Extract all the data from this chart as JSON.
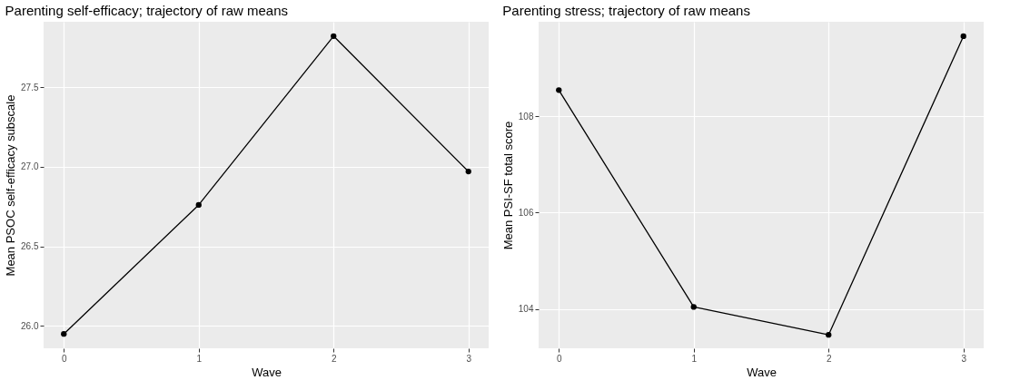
{
  "chart_data": [
    {
      "type": "line",
      "title": "Parenting self-efficacy; trajectory of raw means",
      "xlabel": "Wave",
      "ylabel": "Mean PSOC self-efficacy subscale",
      "x": [
        0,
        1,
        2,
        3
      ],
      "series": [
        {
          "color": "#000000",
          "values": [
            25.95,
            26.76,
            27.82,
            26.97
          ]
        }
      ],
      "xlim": [
        -0.15,
        3.15
      ],
      "xticks": [
        0,
        1,
        2,
        3
      ],
      "ylim": [
        25.86,
        27.91
      ],
      "yticks": [
        {
          "value": 26.0,
          "label": "26.0"
        },
        26.5,
        {
          "value": 27.0,
          "label": "27.0"
        },
        27.5
      ],
      "grid": true,
      "marker": "circle",
      "line_style": "solid"
    },
    {
      "type": "line",
      "title": "Parenting stress; trajectory of raw means",
      "xlabel": "Wave",
      "ylabel": "Mean PSI-SF total score",
      "x": [
        0,
        1,
        2,
        3
      ],
      "series": [
        {
          "color": "#000000",
          "values": [
            108.55,
            104.04,
            103.46,
            109.67
          ]
        }
      ],
      "xlim": [
        -0.15,
        3.15
      ],
      "xticks": [
        0,
        1,
        2,
        3
      ],
      "ylim": [
        103.18,
        109.97
      ],
      "yticks": [
        104,
        106,
        108
      ],
      "grid": true,
      "marker": "circle",
      "line_style": "solid"
    }
  ]
}
